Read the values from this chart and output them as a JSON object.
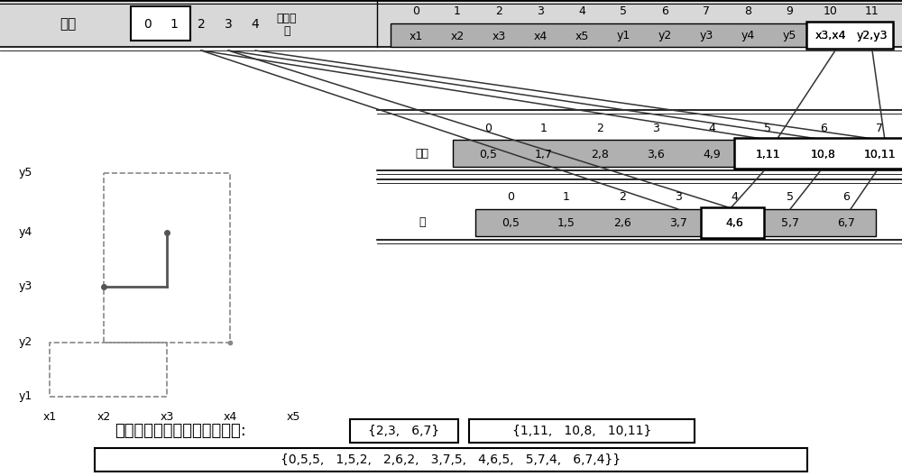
{
  "bg_color": "#ffffff",
  "row1_header": "变量",
  "row1_cells_vals": [
    "0",
    "1",
    "2",
    "3",
    "4"
  ],
  "row1_label_top": "区间数",
  "row1_label_bot": "値",
  "row1_index": [
    "0",
    "1",
    "2",
    "3",
    "4",
    "5",
    "6",
    "7",
    "8",
    "9",
    "10",
    "11"
  ],
  "row1_values": [
    "x1",
    "x2",
    "x3",
    "x4",
    "x5",
    "y1",
    "y2",
    "y3",
    "y4",
    "y5",
    "x3,x4",
    "y2,y3"
  ],
  "row2_label": "节点",
  "row2_index": [
    "0",
    "1",
    "2",
    "3",
    "4",
    "5",
    "6",
    "7"
  ],
  "row2_values": [
    "0,5",
    "1,7",
    "2,8",
    "3,6",
    "4,9",
    "1,11",
    "10,8",
    "10,11"
  ],
  "row3_label": "边",
  "row3_index": [
    "0",
    "1",
    "2",
    "3",
    "4",
    "5",
    "6"
  ],
  "row3_values": [
    "0,5",
    "1,5",
    "2,6",
    "3,7",
    "4,6",
    "5,7",
    "6,7"
  ],
  "y_labels": [
    "y1",
    "y2",
    "y3",
    "y4",
    "y5"
  ],
  "x_labels": [
    "x1",
    "x2",
    "x3",
    "x4",
    "x5"
  ],
  "bottom_text": "查找表中的完备最优斯坦纳树:",
  "bottom_box1": "{2,3,   6,7}",
  "bottom_box2": "{1,11,   10,8,   10,11}",
  "bottom_line2": "{0,5,5,   1,5,2,   2,6,2,   3,7,5,   4,6,5,   5,7,4,   6,7,4}}"
}
